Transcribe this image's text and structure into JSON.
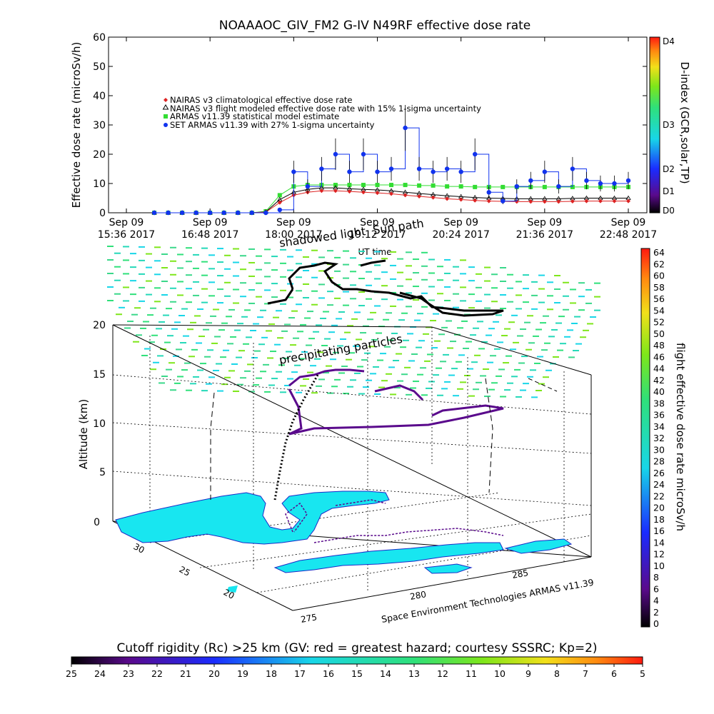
{
  "title": "NOAAAOC_GIV_FM2 G-IV   N49RF  effective dose rate",
  "top_chart": {
    "ylabel": "Effective dose rate (microSv/h)",
    "xlabel": "UT time",
    "ylim": [
      0,
      60
    ],
    "yticks": [
      "0",
      "10",
      "20",
      "30",
      "40",
      "50",
      "60"
    ],
    "xtick_top": [
      "Sep 09",
      "Sep 09",
      "Sep 09",
      "Sep 09",
      "Sep 09",
      "Sep 09",
      "Sep 09"
    ],
    "xtick_bottom": [
      "15:36 2017",
      "16:48 2017",
      "18:00 2017",
      "19:12 2017",
      "20:24 2017",
      "21:36 2017",
      "22:48 2017"
    ],
    "legend": [
      {
        "label": "NAIRAS v3 climatological effective dose rate",
        "color": "#dd2222",
        "marker": "diamond"
      },
      {
        "label": "NAIRAS v3 flight modeled effective dose rate with 15% 1-sigma uncertainty",
        "color": "#000000",
        "marker": "triangle"
      },
      {
        "label": "ARMAS v11.39 statistical model estimate",
        "color": "#33dd33",
        "marker": "square"
      },
      {
        "label": "SET ARMAS v11.39 with 27% 1-sigma uncertainty",
        "color": "#1133ee",
        "marker": "circle"
      }
    ],
    "dindex_label": "D-index (GCR,solar,TP)",
    "dindex_ticks": [
      "D4",
      "D3",
      "D2",
      "D1",
      "D0"
    ]
  },
  "overlay": {
    "sun_path": "Sun path",
    "shadowed": "shadowed light",
    "precipitating": "precipitating particles"
  },
  "bottom_chart": {
    "zlabel": "Altitude (km)",
    "zticks": [
      "0",
      "5",
      "10",
      "15",
      "20"
    ],
    "lat_ticks": [
      "30",
      "25",
      "20"
    ],
    "lon_ticks": [
      "275",
      "280",
      "285"
    ],
    "credit": "Space Environment Technologies ARMAS v11.39",
    "right_cb_label": "flight effective dose rate microSv/h",
    "right_cb_ticks": [
      "64",
      "62",
      "60",
      "58",
      "56",
      "54",
      "52",
      "50",
      "48",
      "46",
      "44",
      "42",
      "40",
      "38",
      "36",
      "34",
      "32",
      "30",
      "28",
      "26",
      "24",
      "22",
      "20",
      "18",
      "16",
      "14",
      "12",
      "10",
      "8",
      "6",
      "4",
      "2",
      "0"
    ]
  },
  "bottom_colorbar": {
    "title": "Cutoff rigidity (Rc) >25 km (GV: red = greatest hazard; courtesy SSSRC; Kp=2)",
    "ticks": [
      "25",
      "24",
      "23",
      "22",
      "21",
      "20",
      "19",
      "18",
      "17",
      "16",
      "15",
      "14",
      "13",
      "12",
      "11",
      "10",
      "9",
      "8",
      "7",
      "6",
      "5"
    ]
  },
  "chart_data": {
    "type": "scatter",
    "title": "NOAAAOC_GIV_FM2 G-IV   N49RF  effective dose rate",
    "xlabel": "UT time",
    "ylabel": "Effective dose rate (microSv/h)",
    "ylim": [
      0,
      60
    ],
    "x": [
      "16:00",
      "16:12",
      "16:24",
      "16:36",
      "16:48",
      "17:00",
      "17:12",
      "17:24",
      "17:36",
      "17:48",
      "18:00",
      "18:12",
      "18:24",
      "18:36",
      "18:48",
      "19:00",
      "19:12",
      "19:24",
      "19:36",
      "19:48",
      "20:00",
      "20:12",
      "20:24",
      "20:36",
      "20:48",
      "21:00",
      "21:12",
      "21:24",
      "21:36",
      "21:48",
      "22:00",
      "22:12",
      "22:24",
      "22:36",
      "22:48"
    ],
    "series": [
      {
        "name": "NAIRAS v3 climatological effective dose rate",
        "values": [
          0,
          0,
          0,
          0,
          0,
          0,
          0,
          0,
          0.2,
          3.5,
          6,
          7,
          7.5,
          7.5,
          7.3,
          7,
          6.8,
          6.5,
          6,
          5.6,
          5.2,
          4.8,
          4.5,
          4.2,
          4,
          3.9,
          3.8,
          3.8,
          3.8,
          3.8,
          3.9,
          4,
          4,
          4,
          4
        ]
      },
      {
        "name": "NAIRAS v3 flight modeled effective dose rate with 15% 1-sigma uncertainty",
        "values": [
          0,
          0,
          0,
          0,
          0,
          0,
          0,
          0,
          0.3,
          4.5,
          7,
          8,
          8.5,
          8.5,
          8.2,
          8,
          7.8,
          7.5,
          7,
          6.6,
          6.2,
          5.8,
          5.5,
          5.2,
          5,
          4.9,
          4.8,
          4.8,
          4.8,
          4.8,
          4.9,
          5,
          5,
          5,
          5
        ]
      },
      {
        "name": "ARMAS v11.39 statistical model estimate",
        "values": [
          0,
          0,
          0,
          0,
          0,
          0,
          0,
          0,
          0.5,
          6,
          9,
          9.5,
          9.5,
          9.5,
          9.5,
          9.5,
          9.5,
          9.5,
          9.5,
          9.3,
          9.3,
          9,
          9,
          8.8,
          8.8,
          8.8,
          8.8,
          8.8,
          8.8,
          8.8,
          8.8,
          8.8,
          8.8,
          8.8,
          8.8
        ]
      },
      {
        "name": "SET ARMAS v11.39 with 27% 1-sigma uncertainty",
        "values": [
          0,
          0,
          0,
          0,
          0,
          0,
          0,
          0,
          0,
          1,
          14,
          9,
          15,
          20,
          14,
          20,
          14,
          15,
          29,
          15,
          14,
          15,
          14,
          20,
          7,
          4,
          9,
          11,
          14,
          9,
          15,
          11,
          10,
          10,
          11
        ]
      }
    ]
  }
}
